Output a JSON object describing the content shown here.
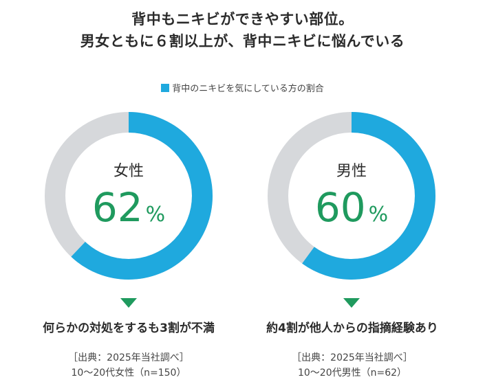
{
  "header": {
    "line1": "背中もニキビができやすい部位。",
    "line2": "男女ともに６割以上が、背中ニキビに悩んでいる"
  },
  "legend": {
    "label": "背中のニキビを気にしている方の割合",
    "color": "#1fa9de"
  },
  "colors": {
    "accent": "#1fa9de",
    "track": "#d6d8db",
    "value_text": "#1f9a5e",
    "arrow": "#1f9a5e"
  },
  "chart_data": [
    {
      "type": "pie",
      "category": "女性",
      "value": 62,
      "unit": "%",
      "remainder": 38
    },
    {
      "type": "pie",
      "category": "男性",
      "value": 60,
      "unit": "%",
      "remainder": 40
    }
  ],
  "panels": [
    {
      "caption": "何らかの対処をするも3割が不満",
      "source_line1": "［出典：2025年当社調べ］",
      "source_line2": "10～20代女性（n=150）"
    },
    {
      "caption": "約4割が他人からの指摘経験あり",
      "source_line1": "［出典：2025年当社調べ］",
      "source_line2": "10～20代男性（n=62）"
    }
  ]
}
